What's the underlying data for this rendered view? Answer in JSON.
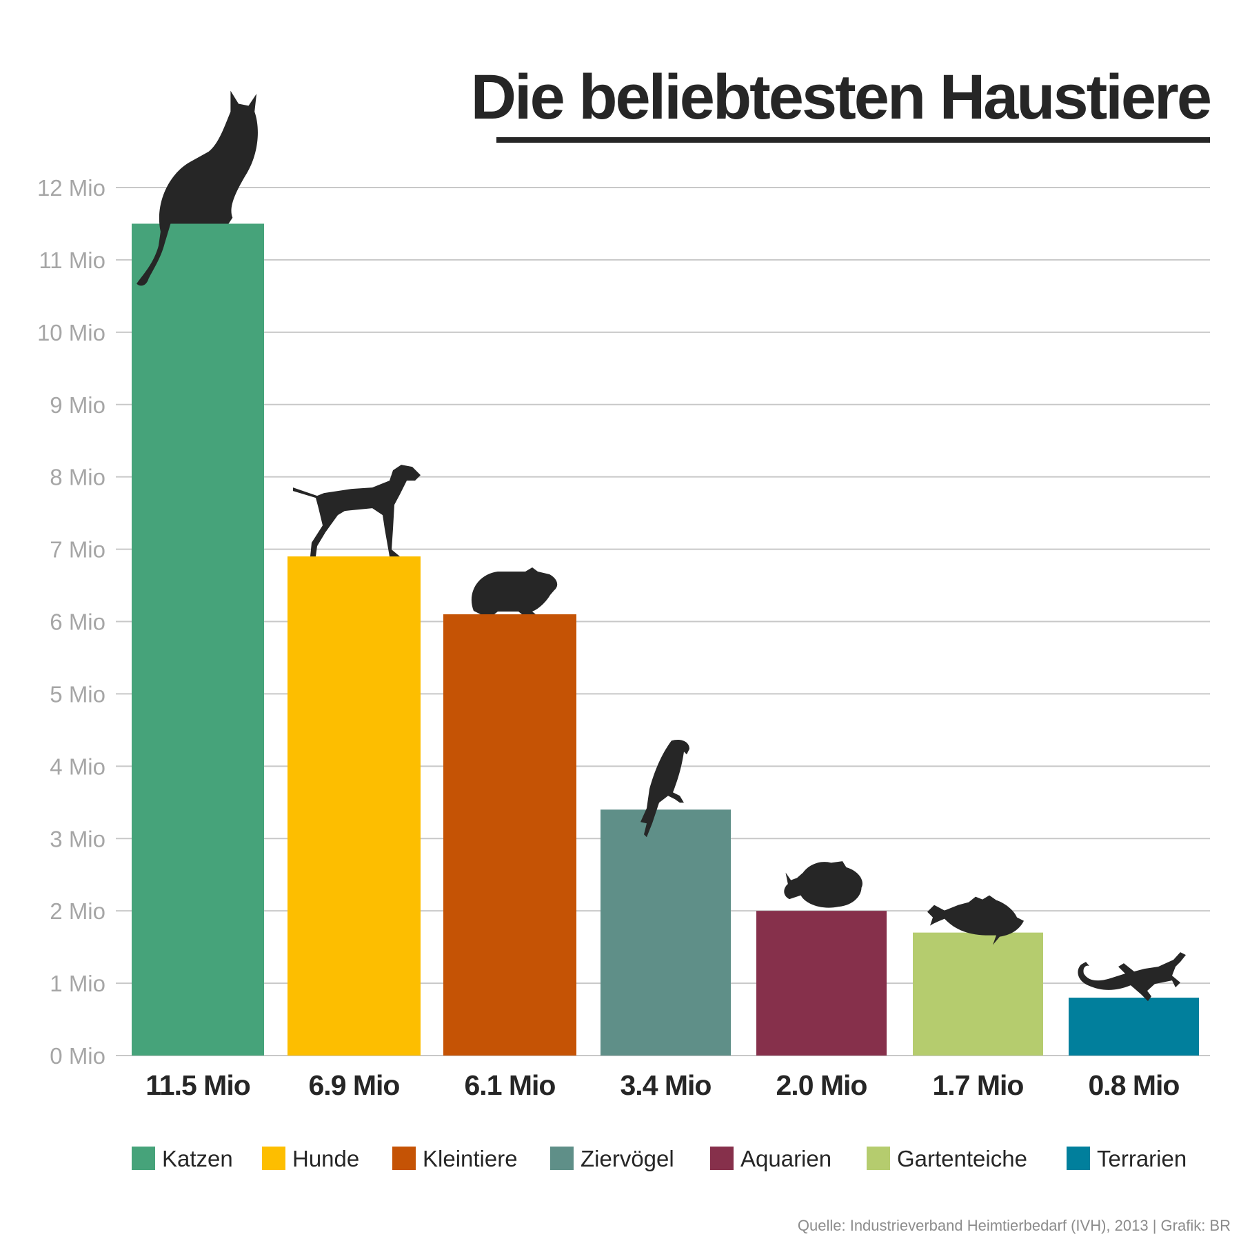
{
  "colors": {
    "text": "#262626",
    "axis_text": "#a6a6a6",
    "grid": "#c8c8c8",
    "source_text": "#8c8c8c"
  },
  "chart_data": {
    "type": "bar",
    "title": "Die beliebtesten Haustiere",
    "xlabel": "",
    "ylabel": "",
    "ylim": [
      0,
      12
    ],
    "y_ticks": [
      0,
      1,
      2,
      3,
      4,
      5,
      6,
      7,
      8,
      9,
      10,
      11,
      12
    ],
    "y_tick_labels": [
      "0 Mio",
      "1 Mio",
      "2 Mio",
      "3 Mio",
      "4 Mio",
      "5 Mio",
      "6 Mio",
      "7 Mio",
      "8 Mio",
      "9 Mio",
      "10 Mio",
      "11 Mio",
      "12 Mio"
    ],
    "grid": true,
    "legend_position": "bottom",
    "categories": [
      "Katzen",
      "Hunde",
      "Kleintiere",
      "Ziervögel",
      "Aquarien",
      "Gartenteiche",
      "Terrarien"
    ],
    "values": [
      11.5,
      6.9,
      6.1,
      3.4,
      2.0,
      1.7,
      0.8
    ],
    "value_labels": [
      "11.5 Mio",
      "6.9 Mio",
      "6.1 Mio",
      "3.4 Mio",
      "2.0 Mio",
      "1.7 Mio",
      "0.8 Mio"
    ],
    "colors": [
      "#46a37a",
      "#fdbe00",
      "#c55305",
      "#5f8f88",
      "#86304b",
      "#b5cc6e",
      "#017f9c"
    ],
    "icons": [
      "cat-icon",
      "dog-icon",
      "guinea-pig-icon",
      "parrot-icon",
      "tropical-fish-icon",
      "perch-fish-icon",
      "lizard-icon"
    ],
    "source": "Quelle: Industrieverband Heimtierbedarf (IVH), 2013 | Grafik: BR"
  }
}
